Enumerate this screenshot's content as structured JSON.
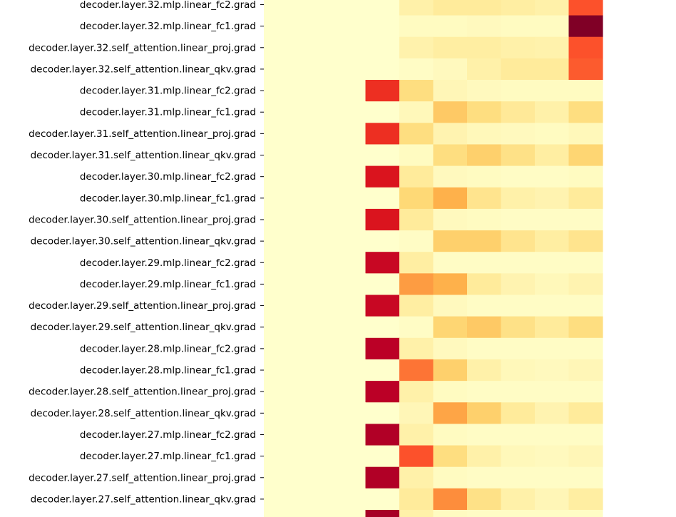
{
  "chart_data": {
    "type": "heatmap",
    "colormap": "YlOrRd",
    "value_range": [
      0,
      1
    ],
    "rows": [
      "decoder.layer.32.mlp.linear_fc2.grad",
      "decoder.layer.32.mlp.linear_fc1.grad",
      "decoder.layer.32.self_attention.linear_proj.grad",
      "decoder.layer.32.self_attention.linear_qkv.grad",
      "decoder.layer.31.mlp.linear_fc2.grad",
      "decoder.layer.31.mlp.linear_fc1.grad",
      "decoder.layer.31.self_attention.linear_proj.grad",
      "decoder.layer.31.self_attention.linear_qkv.grad",
      "decoder.layer.30.mlp.linear_fc2.grad",
      "decoder.layer.30.mlp.linear_fc1.grad",
      "decoder.layer.30.self_attention.linear_proj.grad",
      "decoder.layer.30.self_attention.linear_qkv.grad",
      "decoder.layer.29.mlp.linear_fc2.grad",
      "decoder.layer.29.mlp.linear_fc1.grad",
      "decoder.layer.29.self_attention.linear_proj.grad",
      "decoder.layer.29.self_attention.linear_qkv.grad",
      "decoder.layer.28.mlp.linear_fc2.grad",
      "decoder.layer.28.mlp.linear_fc1.grad",
      "decoder.layer.28.self_attention.linear_proj.grad",
      "decoder.layer.28.self_attention.linear_qkv.grad",
      "decoder.layer.27.mlp.linear_fc2.grad",
      "decoder.layer.27.mlp.linear_fc1.grad",
      "decoder.layer.27.self_attention.linear_proj.grad",
      "decoder.layer.27.self_attention.linear_qkv.grad"
    ],
    "values": [
      [
        0,
        0,
        0,
        0,
        0.1,
        0.14,
        0.14,
        0.12,
        0.1,
        0.62
      ],
      [
        0,
        0,
        0,
        0,
        0.03,
        0.03,
        0.04,
        0.03,
        0.03,
        1.0
      ],
      [
        0,
        0,
        0,
        0,
        0.09,
        0.12,
        0.12,
        0.1,
        0.09,
        0.62
      ],
      [
        0,
        0,
        0,
        0,
        0.02,
        0.04,
        0.1,
        0.14,
        0.14,
        0.6
      ],
      [
        0,
        0,
        0,
        0.7,
        0.22,
        0.06,
        0.04,
        0.03,
        0.03,
        0.03
      ],
      [
        0,
        0,
        0,
        0,
        0.05,
        0.3,
        0.22,
        0.15,
        0.1,
        0.22
      ],
      [
        0,
        0,
        0,
        0.7,
        0.22,
        0.08,
        0.05,
        0.04,
        0.03,
        0.05
      ],
      [
        0,
        0,
        0,
        0,
        0.03,
        0.22,
        0.28,
        0.2,
        0.12,
        0.26
      ],
      [
        0,
        0,
        0,
        0.78,
        0.14,
        0.04,
        0.03,
        0.02,
        0.02,
        0.03
      ],
      [
        0,
        0,
        0,
        0,
        0.25,
        0.38,
        0.18,
        0.1,
        0.08,
        0.14
      ],
      [
        0,
        0,
        0,
        0.78,
        0.14,
        0.04,
        0.03,
        0.02,
        0.02,
        0.02
      ],
      [
        0,
        0,
        0,
        0,
        0.02,
        0.28,
        0.28,
        0.18,
        0.12,
        0.18
      ],
      [
        0,
        0,
        0,
        0.84,
        0.12,
        0.02,
        0.02,
        0.02,
        0.02,
        0.02
      ],
      [
        0,
        0,
        0,
        0,
        0.45,
        0.38,
        0.14,
        0.08,
        0.05,
        0.08
      ],
      [
        0,
        0,
        0,
        0.84,
        0.12,
        0.04,
        0.02,
        0.02,
        0.02,
        0.02
      ],
      [
        0,
        0,
        0,
        0,
        0.02,
        0.26,
        0.3,
        0.2,
        0.14,
        0.22
      ],
      [
        0,
        0,
        0,
        0.88,
        0.1,
        0.04,
        0.02,
        0.02,
        0.02,
        0.02
      ],
      [
        0,
        0,
        0,
        0,
        0.55,
        0.28,
        0.1,
        0.05,
        0.04,
        0.06
      ],
      [
        0,
        0,
        0,
        0.88,
        0.1,
        0.03,
        0.02,
        0.02,
        0.02,
        0.02
      ],
      [
        0,
        0,
        0,
        0,
        0.06,
        0.42,
        0.28,
        0.14,
        0.08,
        0.14
      ],
      [
        0,
        0,
        0,
        0.9,
        0.1,
        0.03,
        0.02,
        0.02,
        0.02,
        0.02
      ],
      [
        0,
        0,
        0,
        0,
        0.62,
        0.22,
        0.1,
        0.05,
        0.04,
        0.06
      ],
      [
        0,
        0,
        0,
        0.9,
        0.1,
        0.03,
        0.02,
        0.02,
        0.02,
        0.02
      ],
      [
        0,
        0,
        0,
        0,
        0.14,
        0.5,
        0.2,
        0.1,
        0.06,
        0.12
      ]
    ],
    "partial_row_values": [
      0,
      0,
      0,
      0.92,
      0.1,
      0.03,
      0.02,
      0.02,
      0.02,
      0.02
    ],
    "title": "",
    "xlabel": "",
    "ylabel": ""
  }
}
